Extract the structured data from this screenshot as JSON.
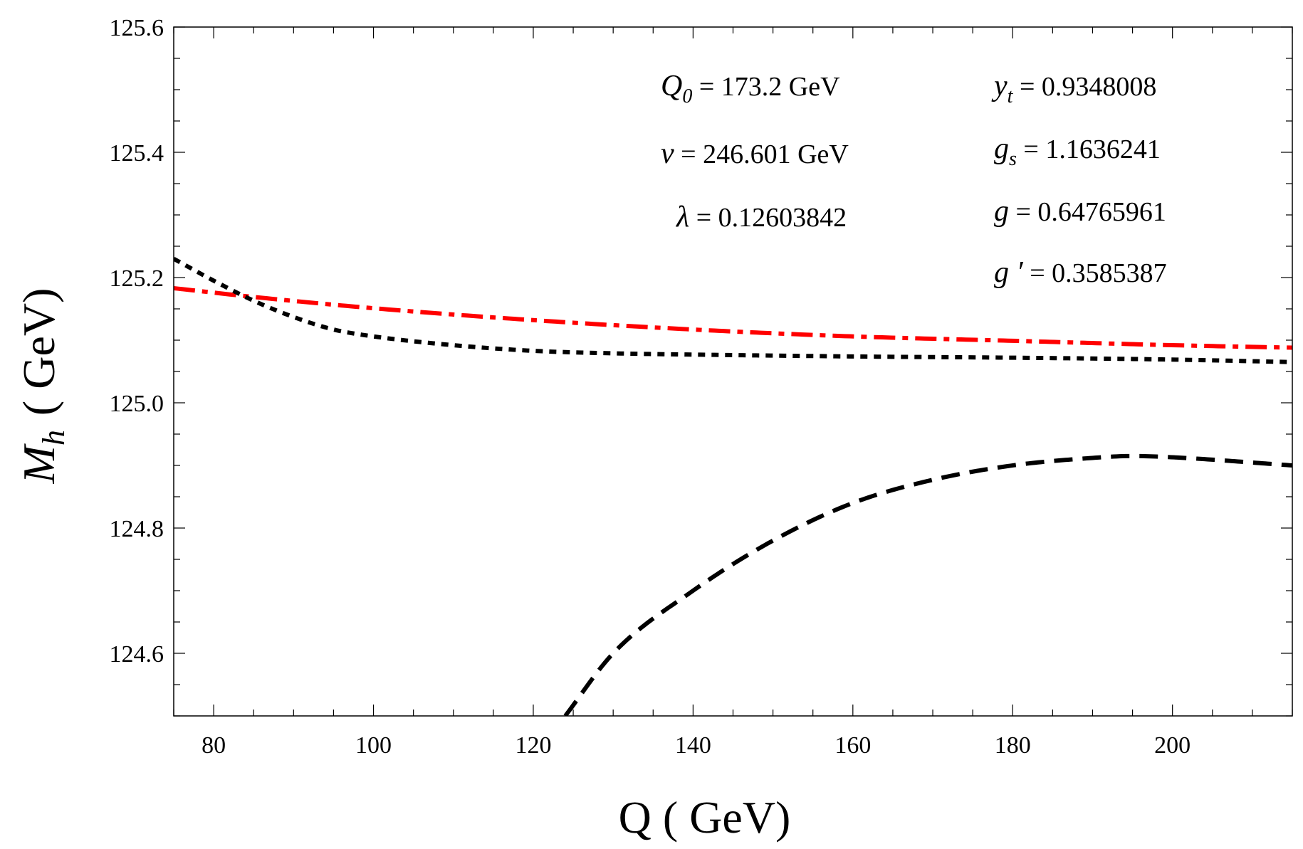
{
  "chart_data": {
    "type": "line",
    "xlabel": "Q ( GeV)",
    "ylabel_symbol": "M",
    "ylabel_sub": "h",
    "ylabel_unit": "( GeV)",
    "xlim": [
      75,
      215
    ],
    "ylim": [
      124.5,
      125.6
    ],
    "x_ticks": [
      80,
      100,
      120,
      140,
      160,
      180,
      200
    ],
    "x_tick_labels": [
      "80",
      "100",
      "120",
      "140",
      "160",
      "180",
      "200"
    ],
    "y_ticks": [
      124.6,
      124.8,
      125.0,
      125.2,
      125.4,
      125.6
    ],
    "y_tick_labels": [
      "124.6",
      "124.8",
      "125.0",
      "125.2",
      "125.4",
      "125.6"
    ],
    "series": [
      {
        "name": "dot-dashed",
        "color": "#ff0000",
        "style": "dashdot",
        "x": [
          75,
          85,
          100,
          120,
          140,
          160,
          180,
          200,
          215
        ],
        "y": [
          125.183,
          125.169,
          125.151,
          125.132,
          125.117,
          125.106,
          125.099,
          125.092,
          125.088
        ]
      },
      {
        "name": "dotted",
        "color": "#000000",
        "style": "dotted",
        "x": [
          75,
          80,
          85,
          90,
          95,
          100,
          110,
          120,
          130,
          140,
          160,
          180,
          200,
          215
        ],
        "y": [
          125.23,
          125.195,
          125.163,
          125.137,
          125.117,
          125.106,
          125.092,
          125.083,
          125.079,
          125.077,
          125.074,
          125.072,
          125.069,
          125.065
        ]
      },
      {
        "name": "dashed",
        "color": "#000000",
        "style": "dashed",
        "x": [
          124,
          130,
          140,
          150,
          160,
          170,
          180,
          190,
          195,
          200,
          215
        ],
        "y": [
          124.5,
          124.6,
          124.7,
          124.78,
          124.84,
          124.877,
          124.9,
          124.912,
          124.915,
          124.913,
          124.9
        ]
      }
    ]
  },
  "params_left": [
    {
      "sym": "Q",
      "sub": "0",
      "rest": " = 173.2  GeV"
    },
    {
      "sym": "v",
      "sub": "",
      "rest": " = 246.601  GeV"
    },
    {
      "sym": "λ",
      "sub": "",
      "rest": " = 0.12603842"
    }
  ],
  "params_right": [
    {
      "sym": "y",
      "sub": "t",
      "rest": " = 0.9348008"
    },
    {
      "sym": "g",
      "sub": "s",
      "rest": " = 1.1636241"
    },
    {
      "sym": "g",
      "sub": "",
      "rest": " = 0.64765961"
    },
    {
      "sym": "g ′",
      "sub": "",
      "rest": " = 0.3585387"
    }
  ]
}
